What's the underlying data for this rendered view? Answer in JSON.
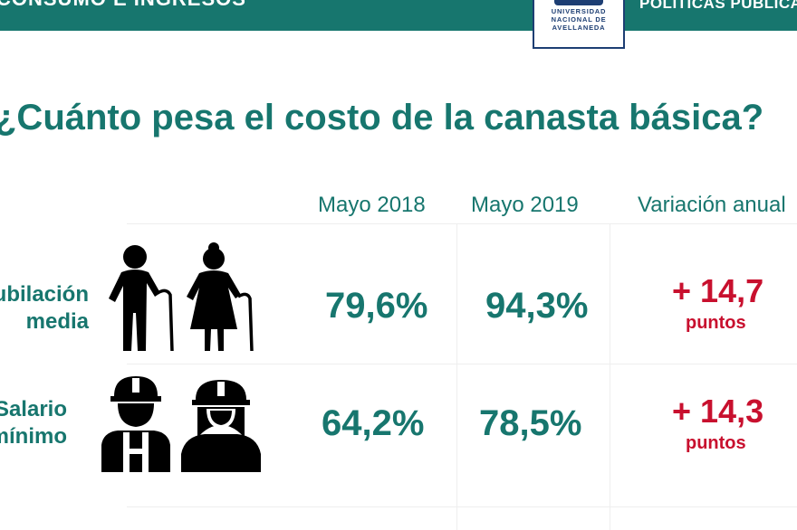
{
  "header": {
    "left_text": "CONSUMO E INGRESOS",
    "right_text": "POLÍTICAS PÚBLICAS",
    "logo": {
      "line1": "UNIVERSIDAD",
      "line2": "NACIONAL DE",
      "line3": "AVELLANEDA"
    }
  },
  "title": "¿Cuánto pesa el costo de la canasta básica?",
  "columns": [
    "Mayo 2018",
    "Mayo 2019",
    "Variación anual"
  ],
  "rows": [
    {
      "label_line1": "Jubilación",
      "label_line2": "media",
      "icon": "elderly-couple-icon",
      "value_2018": "79,6%",
      "value_2019": "94,3%",
      "variation": "+ 14,7",
      "variation_unit": "puntos"
    },
    {
      "label_line1": "Salario",
      "label_line2": "mínimo",
      "icon": "construction-workers-icon",
      "value_2018": "64,2%",
      "value_2019": "78,5%",
      "variation": "+ 14,3",
      "variation_unit": "puntos"
    }
  ],
  "colors": {
    "accent": "#17766e",
    "highlight": "#c8102e",
    "logo": "#1d3e73"
  }
}
